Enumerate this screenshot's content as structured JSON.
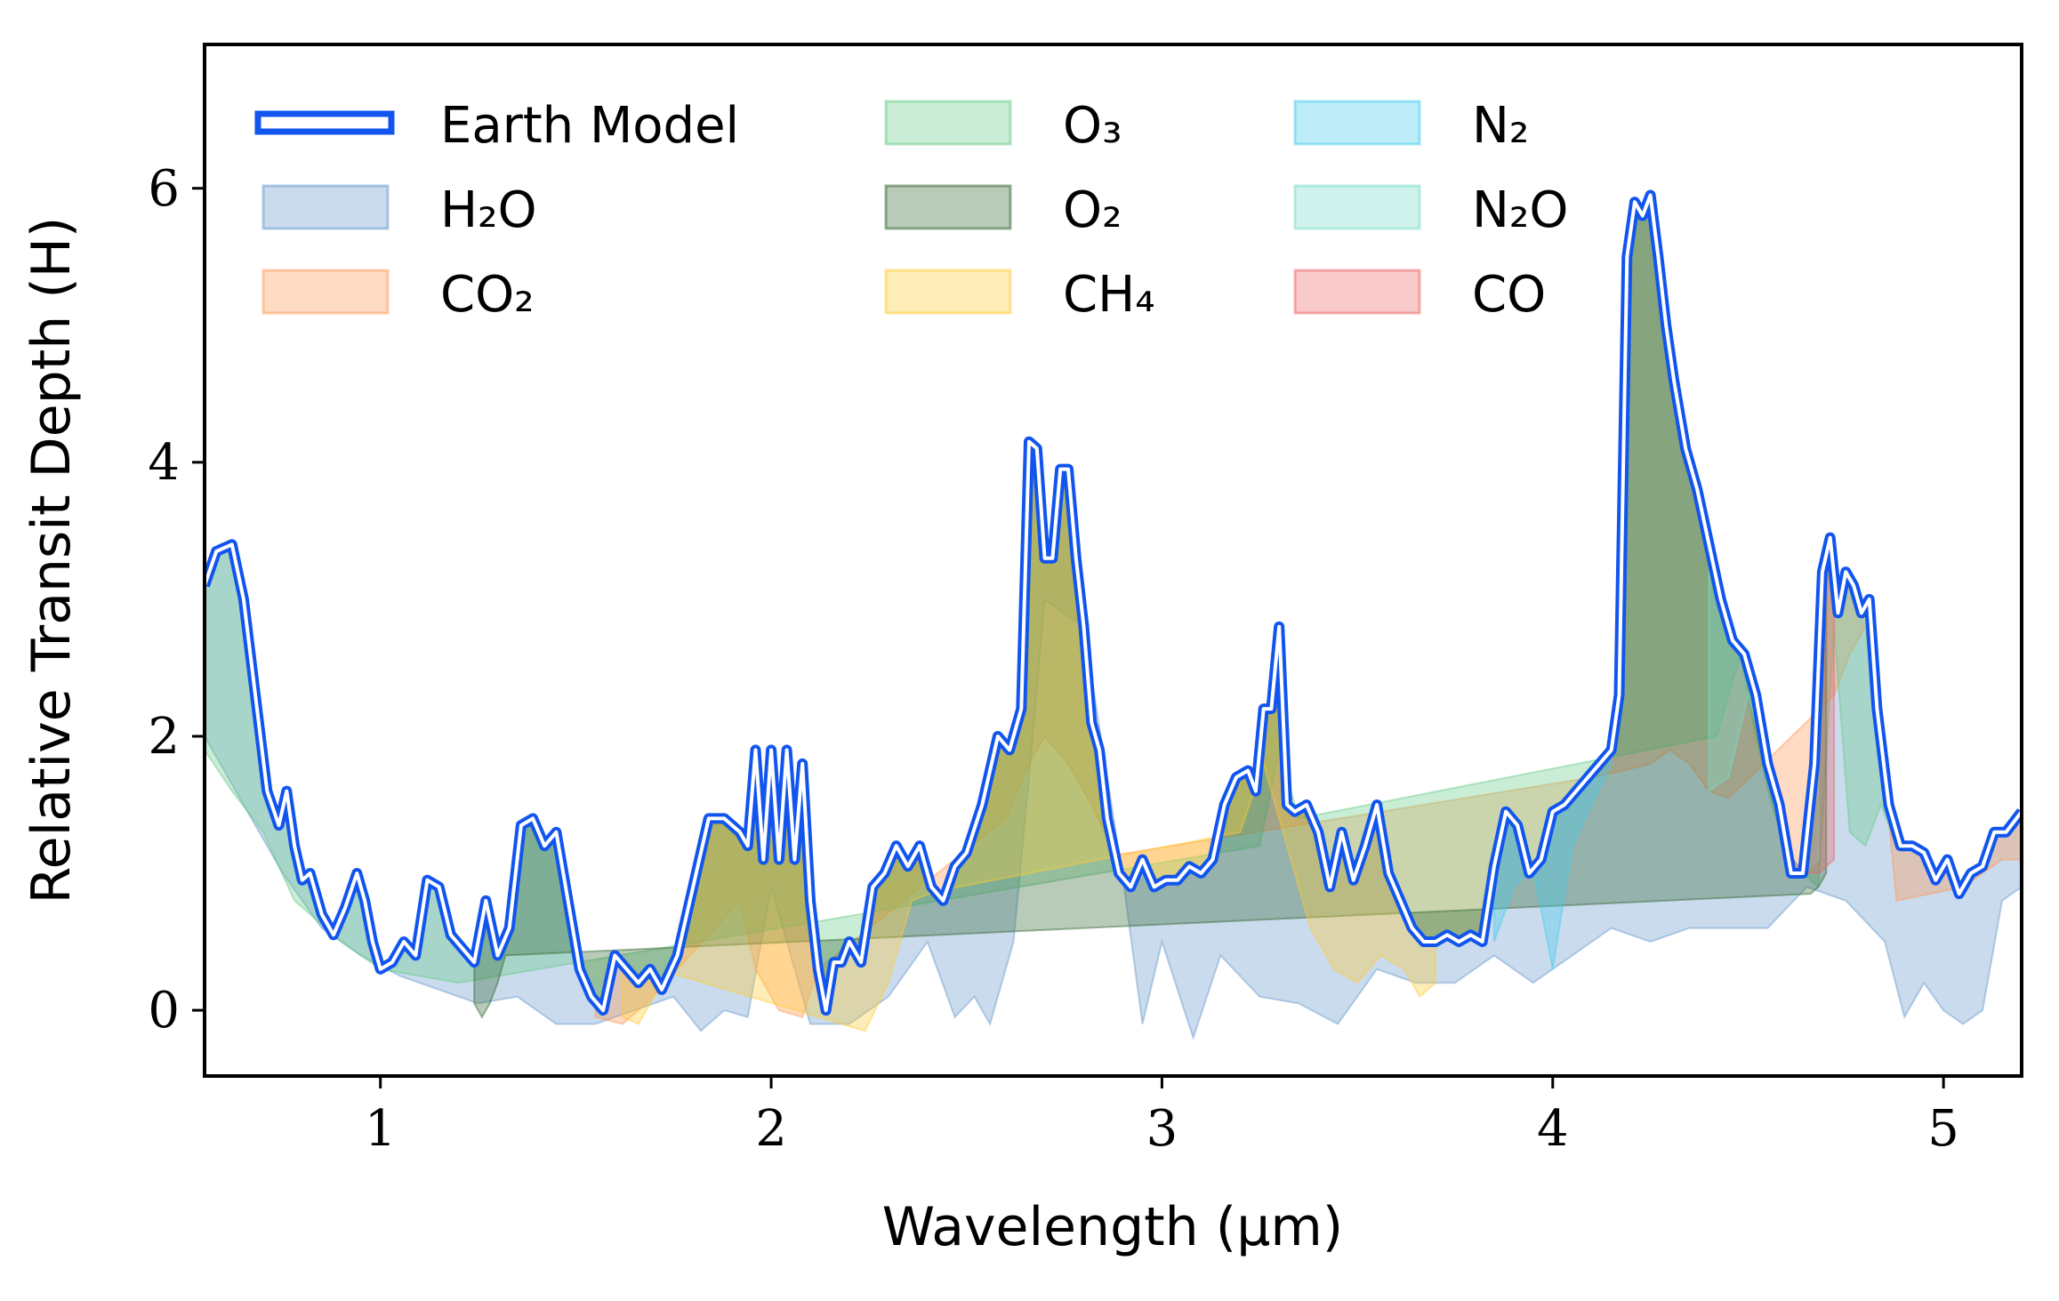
{
  "chart_data": {
    "type": "area",
    "xlabel": "Wavelength (μm)",
    "ylabel": "Relative Transit Depth (H)",
    "xlim": [
      0.55,
      5.2
    ],
    "ylim": [
      -0.48,
      7.05
    ],
    "xticks": [
      1,
      2,
      3,
      4,
      5
    ],
    "yticks": [
      0,
      2,
      4,
      6
    ],
    "grid": false,
    "legend_position": "top-left",
    "legend_columns": 3,
    "line": {
      "name": "Earth Model",
      "color": "#1155ee",
      "x": [
        0.55,
        0.58,
        0.62,
        0.65,
        0.68,
        0.71,
        0.74,
        0.76,
        0.78,
        0.8,
        0.82,
        0.85,
        0.88,
        0.91,
        0.94,
        0.96,
        0.98,
        1.0,
        1.03,
        1.06,
        1.09,
        1.12,
        1.15,
        1.18,
        1.21,
        1.24,
        1.27,
        1.3,
        1.33,
        1.36,
        1.39,
        1.42,
        1.45,
        1.48,
        1.51,
        1.54,
        1.57,
        1.6,
        1.63,
        1.66,
        1.69,
        1.72,
        1.76,
        1.8,
        1.84,
        1.88,
        1.92,
        1.94,
        1.96,
        1.98,
        2.0,
        2.02,
        2.04,
        2.06,
        2.08,
        2.1,
        2.12,
        2.14,
        2.16,
        2.18,
        2.2,
        2.23,
        2.26,
        2.29,
        2.32,
        2.35,
        2.38,
        2.41,
        2.44,
        2.47,
        2.5,
        2.54,
        2.58,
        2.61,
        2.64,
        2.66,
        2.68,
        2.7,
        2.72,
        2.74,
        2.76,
        2.78,
        2.8,
        2.82,
        2.84,
        2.86,
        2.89,
        2.92,
        2.95,
        2.98,
        3.01,
        3.04,
        3.07,
        3.1,
        3.13,
        3.16,
        3.19,
        3.22,
        3.24,
        3.26,
        3.28,
        3.3,
        3.32,
        3.34,
        3.37,
        3.4,
        3.43,
        3.46,
        3.49,
        3.52,
        3.55,
        3.58,
        3.61,
        3.64,
        3.67,
        3.7,
        3.73,
        3.76,
        3.79,
        3.82,
        3.85,
        3.88,
        3.91,
        3.94,
        3.97,
        4.0,
        4.03,
        4.06,
        4.09,
        4.12,
        4.15,
        4.17,
        4.19,
        4.21,
        4.23,
        4.25,
        4.27,
        4.29,
        4.31,
        4.34,
        4.37,
        4.4,
        4.43,
        4.46,
        4.49,
        4.52,
        4.55,
        4.58,
        4.61,
        4.64,
        4.67,
        4.69,
        4.71,
        4.73,
        4.75,
        4.77,
        4.79,
        4.81,
        4.83,
        4.86,
        4.89,
        4.92,
        4.95,
        4.98,
        5.01,
        5.04,
        5.07,
        5.1,
        5.13,
        5.16,
        5.2
      ],
      "y": [
        3.1,
        3.35,
        3.4,
        3.0,
        2.3,
        1.6,
        1.35,
        1.6,
        1.2,
        0.95,
        1.0,
        0.7,
        0.55,
        0.75,
        1.0,
        0.8,
        0.5,
        0.3,
        0.35,
        0.5,
        0.4,
        0.95,
        0.9,
        0.55,
        0.45,
        0.35,
        0.8,
        0.4,
        0.6,
        1.35,
        1.4,
        1.2,
        1.3,
        0.8,
        0.3,
        0.1,
        0.0,
        0.4,
        0.3,
        0.2,
        0.3,
        0.15,
        0.4,
        0.9,
        1.4,
        1.4,
        1.3,
        1.2,
        1.9,
        1.1,
        1.9,
        1.1,
        1.9,
        1.1,
        1.8,
        0.8,
        0.3,
        0.0,
        0.35,
        0.35,
        0.5,
        0.35,
        0.9,
        1.0,
        1.2,
        1.05,
        1.2,
        0.9,
        0.8,
        1.05,
        1.15,
        1.5,
        2.0,
        1.9,
        2.2,
        4.15,
        4.1,
        3.3,
        3.3,
        3.95,
        3.95,
        3.3,
        2.8,
        2.1,
        1.9,
        1.4,
        1.0,
        0.9,
        1.1,
        0.9,
        0.95,
        0.95,
        1.05,
        1.0,
        1.1,
        1.5,
        1.7,
        1.75,
        1.6,
        2.2,
        2.2,
        2.8,
        1.5,
        1.45,
        1.5,
        1.3,
        0.9,
        1.3,
        0.95,
        1.2,
        1.5,
        1.0,
        0.8,
        0.6,
        0.5,
        0.5,
        0.55,
        0.5,
        0.55,
        0.5,
        1.05,
        1.45,
        1.35,
        1.0,
        1.1,
        1.45,
        1.5,
        1.6,
        1.7,
        1.8,
        1.9,
        2.3,
        5.5,
        5.9,
        5.8,
        5.95,
        5.5,
        5.0,
        4.6,
        4.1,
        3.8,
        3.4,
        3.0,
        2.7,
        2.6,
        2.3,
        1.8,
        1.5,
        1.0,
        1.0,
        1.8,
        3.2,
        3.45,
        2.9,
        3.2,
        3.1,
        2.9,
        3.0,
        2.2,
        1.5,
        1.2,
        1.2,
        1.15,
        0.95,
        1.1,
        0.85,
        1.0,
        1.05,
        1.3,
        1.3,
        1.45
      ]
    },
    "series": [
      {
        "name": "H₂O",
        "color": "#6699cc",
        "x": [
          0.55,
          0.65,
          0.75,
          0.85,
          0.95,
          1.05,
          1.15,
          1.25,
          1.35,
          1.45,
          1.55,
          1.65,
          1.75,
          1.82,
          1.88,
          1.94,
          2.0,
          2.1,
          2.2,
          2.3,
          2.4,
          2.47,
          2.52,
          2.56,
          2.62,
          2.66,
          2.7,
          2.8,
          2.9,
          2.95,
          3.0,
          3.08,
          3.15,
          3.25,
          3.35,
          3.45,
          3.55,
          3.65,
          3.75,
          3.8,
          3.85,
          3.95,
          4.05,
          4.15,
          4.25,
          4.35,
          4.45,
          4.55,
          4.65,
          4.75,
          4.85,
          4.9,
          4.95,
          5.0,
          5.05,
          5.1,
          5.15,
          5.2
        ],
        "y": [
          2.0,
          1.5,
          1.0,
          0.6,
          0.4,
          0.25,
          0.15,
          0.05,
          0.1,
          -0.1,
          -0.1,
          0.0,
          0.1,
          -0.15,
          0.0,
          -0.05,
          0.9,
          -0.1,
          -0.1,
          0.1,
          0.5,
          -0.05,
          0.1,
          -0.1,
          0.5,
          1.7,
          3.0,
          3.0,
          1.0,
          -0.1,
          0.5,
          -0.2,
          0.4,
          0.1,
          0.05,
          -0.1,
          0.3,
          0.2,
          0.2,
          0.3,
          0.4,
          0.2,
          0.4,
          0.6,
          0.5,
          0.6,
          0.6,
          0.6,
          0.9,
          0.8,
          0.5,
          -0.05,
          0.2,
          0.0,
          -0.1,
          0.0,
          0.8,
          0.9
        ]
      },
      {
        "name": "CO₂",
        "color": "#ff9955",
        "x": [
          1.55,
          1.62,
          1.68,
          1.92,
          1.96,
          2.02,
          2.08,
          2.12,
          2.6,
          2.66,
          2.7,
          2.76,
          2.82,
          2.88,
          4.1,
          4.18,
          4.25,
          4.3,
          4.35,
          4.4,
          4.45,
          4.72,
          4.76,
          4.8,
          4.84,
          4.88,
          5.05,
          5.1,
          5.15,
          5.2
        ],
        "y": [
          -0.05,
          -0.1,
          0.05,
          0.8,
          0.3,
          0.0,
          -0.05,
          0.3,
          1.4,
          1.8,
          2.0,
          1.8,
          1.5,
          1.2,
          1.7,
          1.75,
          1.8,
          1.9,
          1.8,
          1.6,
          1.55,
          2.3,
          2.6,
          2.8,
          2.2,
          0.8,
          0.9,
          1.0,
          1.1,
          1.1
        ]
      },
      {
        "name": "O₃",
        "color": "#66cc88",
        "x": [
          0.55,
          0.62,
          0.7,
          0.78,
          0.9,
          1.0,
          1.1,
          1.2,
          3.25,
          3.3,
          3.35,
          4.42,
          4.48,
          4.52,
          4.56,
          4.6,
          4.64,
          4.68,
          4.72,
          4.76,
          4.8,
          4.84,
          4.88
        ],
        "y": [
          1.9,
          1.6,
          1.3,
          0.8,
          0.5,
          0.3,
          0.25,
          0.2,
          1.2,
          1.9,
          1.4,
          2.0,
          2.6,
          2.0,
          1.5,
          1.2,
          1.0,
          0.9,
          2.8,
          1.3,
          1.2,
          1.5,
          1.2
        ]
      },
      {
        "name": "O₂",
        "color": "#336633",
        "x": [
          1.24,
          1.26,
          1.28,
          1.3,
          1.32,
          4.66,
          4.68,
          4.7
        ],
        "y": [
          0.05,
          -0.05,
          0.05,
          0.2,
          0.4,
          0.85,
          0.9,
          1.0
        ]
      },
      {
        "name": "CH₄",
        "color": "#ffcc33",
        "x": [
          1.62,
          1.66,
          1.7,
          1.74,
          2.18,
          2.24,
          2.3,
          2.36,
          2.42,
          3.2,
          3.26,
          3.32,
          3.38,
          3.44,
          3.5,
          3.56,
          3.62,
          3.66,
          3.7
        ],
        "y": [
          -0.05,
          -0.1,
          0.1,
          0.3,
          -0.1,
          -0.15,
          0.2,
          0.8,
          0.9,
          1.3,
          1.8,
          1.2,
          0.6,
          0.3,
          0.2,
          0.4,
          0.3,
          0.1,
          0.2
        ]
      },
      {
        "name": "N₂",
        "color": "#44ccee",
        "x": [
          3.85,
          3.9,
          3.95,
          4.0,
          4.05,
          4.1,
          4.15
        ],
        "y": [
          0.5,
          0.9,
          1.2,
          0.3,
          1.2,
          1.5,
          1.8
        ]
      },
      {
        "name": "N₂O",
        "color": "#77ddcc",
        "x": [
          4.4,
          4.45,
          4.5,
          4.55,
          4.6,
          4.64,
          4.68
        ],
        "y": [
          1.6,
          1.7,
          2.3,
          2.3,
          1.6,
          1.3,
          1.1
        ]
      },
      {
        "name": "CO",
        "color": "#ee6666",
        "x": [
          4.6,
          4.64,
          4.68,
          4.72
        ],
        "y": [
          1.3,
          1.2,
          1.0,
          1.1
        ]
      }
    ],
    "legend": [
      {
        "label": "Earth Model",
        "kind": "line",
        "color": "#1155ee"
      },
      {
        "label": "H₂O",
        "kind": "patch",
        "color": "#6699cc"
      },
      {
        "label": "CO₂",
        "kind": "patch",
        "color": "#ff9955"
      },
      {
        "label": "O₃",
        "kind": "patch",
        "color": "#66cc88"
      },
      {
        "label": "O₂",
        "kind": "patch",
        "color": "#336633"
      },
      {
        "label": "CH₄",
        "kind": "patch",
        "color": "#ffcc33"
      },
      {
        "label": "N₂",
        "kind": "patch",
        "color": "#44ccee"
      },
      {
        "label": "N₂O",
        "kind": "patch",
        "color": "#77ddcc"
      },
      {
        "label": "CO",
        "kind": "patch",
        "color": "#ee6666"
      }
    ]
  }
}
